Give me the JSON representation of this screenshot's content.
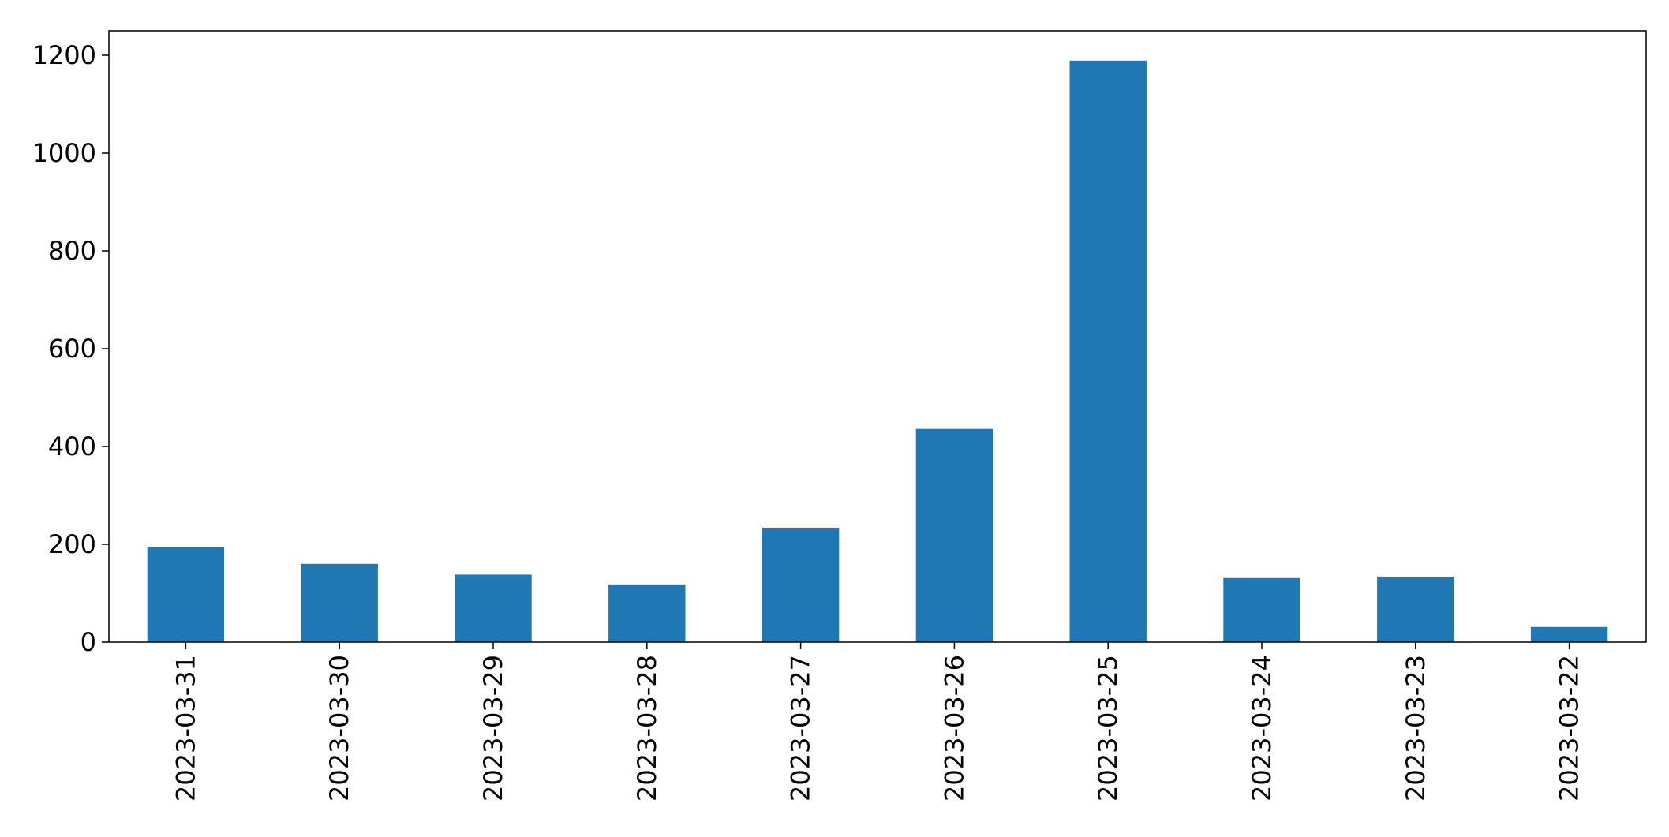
{
  "chart_data": {
    "type": "bar",
    "categories": [
      "2023-03-31",
      "2023-03-30",
      "2023-03-29",
      "2023-03-28",
      "2023-03-27",
      "2023-03-26",
      "2023-03-25",
      "2023-03-24",
      "2023-03-23",
      "2023-03-22"
    ],
    "values": [
      195,
      160,
      138,
      118,
      234,
      436,
      1189,
      131,
      134,
      31
    ],
    "color": "#1f77b4",
    "ylim": [
      0,
      1250
    ],
    "yticks": [
      0,
      200,
      400,
      600,
      800,
      1000,
      1200
    ],
    "grid": false
  }
}
